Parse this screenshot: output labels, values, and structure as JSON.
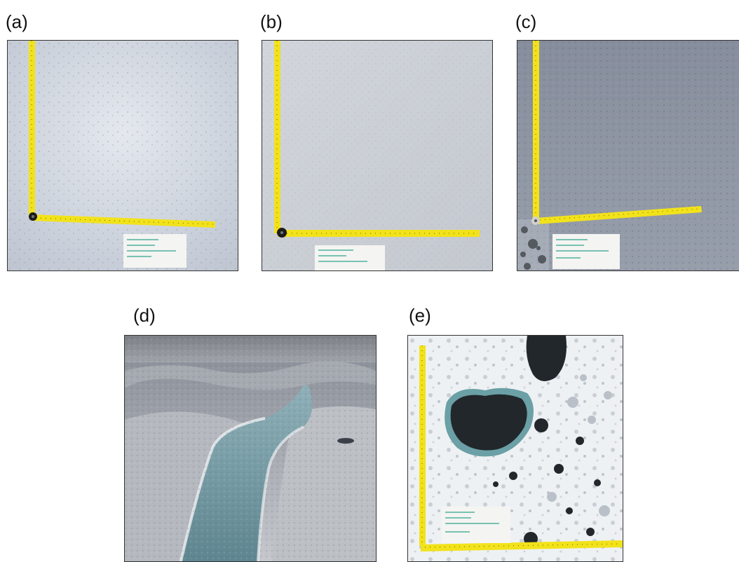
{
  "panels": [
    {
      "label": "(a)"
    },
    {
      "label": "(b)"
    },
    {
      "label": "(c)"
    },
    {
      "label": "(d)"
    },
    {
      "label": "(e)"
    }
  ],
  "colors": {
    "ruler": "#f2e21a",
    "ruler_tick": "#6b6200",
    "ice_light": "#dfe3ea",
    "ice_grey": "#8c93a3",
    "water": "#7fa6b0",
    "cryoconite": "#1e2226"
  }
}
